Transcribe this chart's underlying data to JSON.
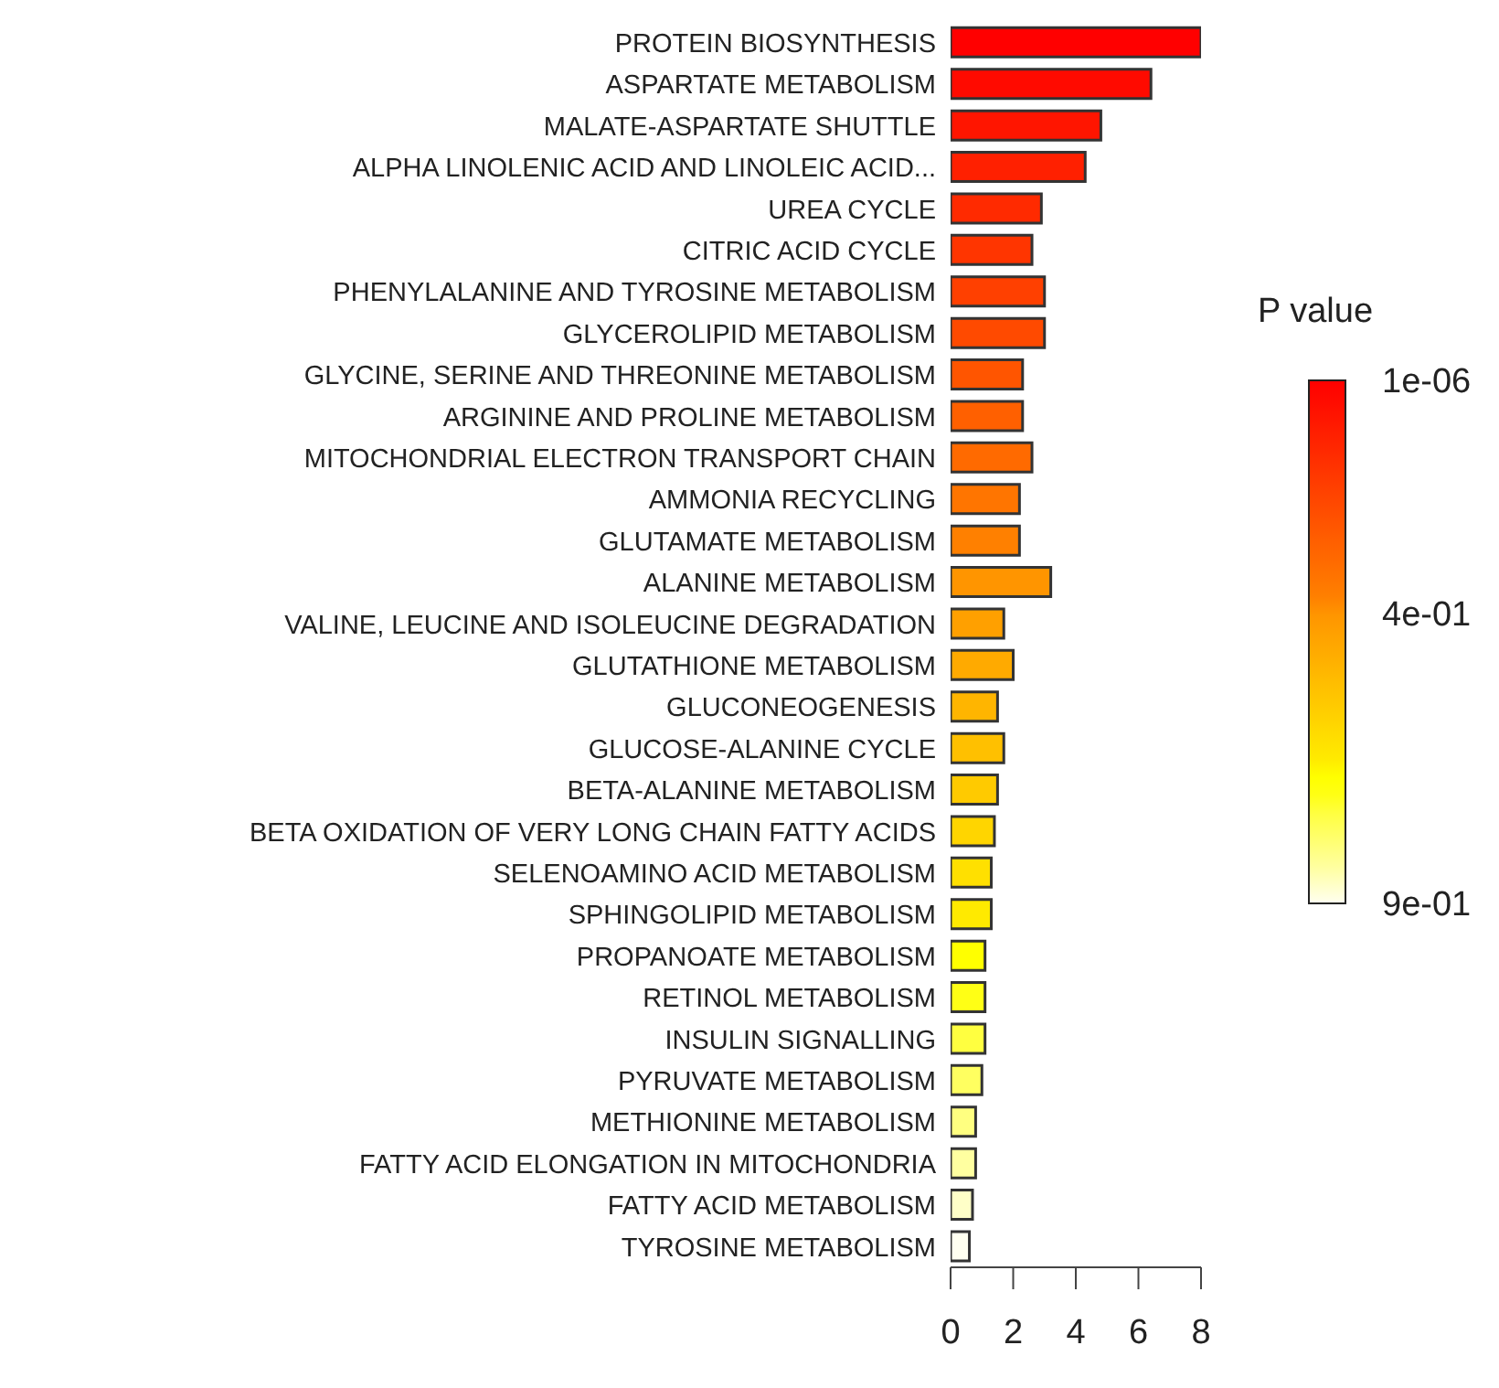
{
  "chart_data": {
    "type": "bar",
    "orientation": "horizontal",
    "categories": [
      "PROTEIN BIOSYNTHESIS",
      "ASPARTATE METABOLISM",
      "MALATE-ASPARTATE SHUTTLE",
      "ALPHA LINOLENIC ACID AND LINOLEIC ACID...",
      "UREA CYCLE",
      "CITRIC ACID CYCLE",
      "PHENYLALANINE AND TYROSINE METABOLISM",
      "GLYCEROLIPID METABOLISM",
      "GLYCINE, SERINE AND THREONINE METABOLISM",
      "ARGININE AND PROLINE METABOLISM",
      "MITOCHONDRIAL ELECTRON TRANSPORT CHAIN",
      "AMMONIA RECYCLING",
      "GLUTAMATE METABOLISM",
      "ALANINE METABOLISM",
      "VALINE, LEUCINE AND ISOLEUCINE DEGRADATION",
      "GLUTATHIONE METABOLISM",
      "GLUCONEOGENESIS",
      "GLUCOSE-ALANINE CYCLE",
      "BETA-ALANINE METABOLISM",
      "BETA OXIDATION OF VERY LONG CHAIN FATTY ACIDS",
      "SELENOAMINO ACID METABOLISM",
      "SPHINGOLIPID METABOLISM",
      "PROPANOATE METABOLISM",
      "RETINOL METABOLISM",
      "INSULIN SIGNALLING",
      "PYRUVATE METABOLISM",
      "METHIONINE METABOLISM",
      "FATTY ACID ELONGATION IN MITOCHONDRIA",
      "FATTY ACID METABOLISM",
      "TYROSINE METABOLISM"
    ],
    "values": [
      8.0,
      6.4,
      4.8,
      4.3,
      2.9,
      2.6,
      3.0,
      3.0,
      2.3,
      2.3,
      2.6,
      2.2,
      2.2,
      3.2,
      1.7,
      2.0,
      1.5,
      1.7,
      1.5,
      1.4,
      1.3,
      1.3,
      1.1,
      1.1,
      1.1,
      1.0,
      0.8,
      0.8,
      0.7,
      0.6
    ],
    "colors": [
      "#ff0000",
      "#ff0a00",
      "#ff1500",
      "#ff2000",
      "#ff2a00",
      "#ff3500",
      "#ff4000",
      "#ff4a00",
      "#ff5500",
      "#ff6000",
      "#ff6a00",
      "#ff7500",
      "#ff8000",
      "#ff9500",
      "#ffa000",
      "#ffaa00",
      "#ffb500",
      "#ffc000",
      "#ffca00",
      "#ffd500",
      "#ffe000",
      "#ffea00",
      "#ffff00",
      "#ffff15",
      "#ffff40",
      "#ffff60",
      "#ffff80",
      "#ffffa0",
      "#ffffc8",
      "#fffff0"
    ],
    "xlim": [
      0,
      8
    ],
    "xticks": [
      0,
      2,
      4,
      6,
      8
    ],
    "clabel": "P value",
    "clim": [
      1e-06,
      0.9
    ],
    "cticks": [
      {
        "value": 1e-06,
        "label": "1e-06"
      },
      {
        "value": 0.4,
        "label": "4e-01"
      },
      {
        "value": 0.9,
        "label": "9e-01"
      }
    ],
    "grid": false
  }
}
